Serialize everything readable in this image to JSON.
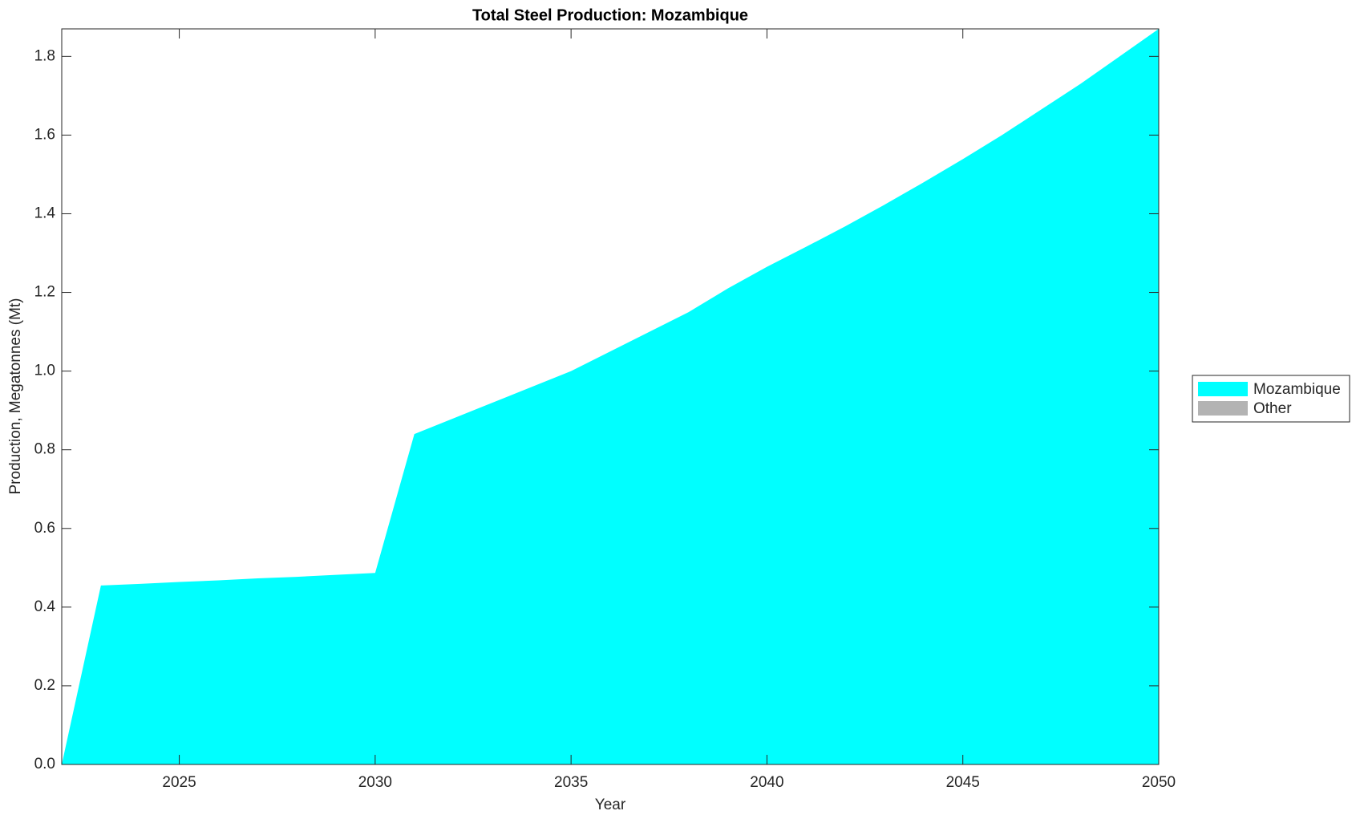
{
  "chart_data": {
    "type": "stacked_area",
    "title": "Total Steel Production: Mozambique",
    "x_label": "Year",
    "y_label": "Production, Megatonnes (Mt)",
    "x": [
      2022,
      2023,
      2024,
      2025,
      2026,
      2027,
      2028,
      2029,
      2030,
      2031,
      2032,
      2033,
      2034,
      2035,
      2036,
      2037,
      2038,
      2039,
      2040,
      2041,
      2042,
      2043,
      2044,
      2045,
      2046,
      2047,
      2048,
      2049,
      2050
    ],
    "series": [
      {
        "name": "Mozambique",
        "color": "#00ffff",
        "values": [
          0,
          0.455,
          0.459,
          0.464,
          0.468,
          0.473,
          0.477,
          0.482,
          0.487,
          0.84,
          0.88,
          0.92,
          0.96,
          1.0,
          1.05,
          1.1,
          1.15,
          1.21,
          1.265,
          1.316,
          1.368,
          1.423,
          1.48,
          1.539,
          1.6,
          1.665,
          1.73,
          1.8,
          1.87
        ]
      },
      {
        "name": "Other",
        "color": "#b3b3b3",
        "values": [
          0,
          0,
          0,
          0,
          0,
          0,
          0,
          0,
          0,
          0,
          0,
          0,
          0,
          0,
          0,
          0,
          0,
          0,
          0,
          0,
          0,
          0,
          0,
          0,
          0,
          0,
          0,
          0,
          0
        ]
      }
    ],
    "xlim": [
      2022,
      2050
    ],
    "xticks": [
      2025,
      2030,
      2035,
      2040,
      2045,
      2050
    ],
    "ylim": [
      0,
      1.87
    ],
    "yticks": [
      {
        "value": 0,
        "label": "0.0"
      },
      {
        "value": 0.2,
        "label": "0.2"
      },
      {
        "value": 0.4,
        "label": "0.4"
      },
      {
        "value": 0.6,
        "label": "0.6"
      },
      {
        "value": 0.8,
        "label": "0.8"
      },
      {
        "value": 1.0,
        "label": "1.0"
      },
      {
        "value": 1.2,
        "label": "1.2"
      },
      {
        "value": 1.4,
        "label": "1.4"
      },
      {
        "value": 1.6,
        "label": "1.6"
      },
      {
        "value": 1.8,
        "label": "1.8"
      }
    ],
    "legend": "right"
  }
}
